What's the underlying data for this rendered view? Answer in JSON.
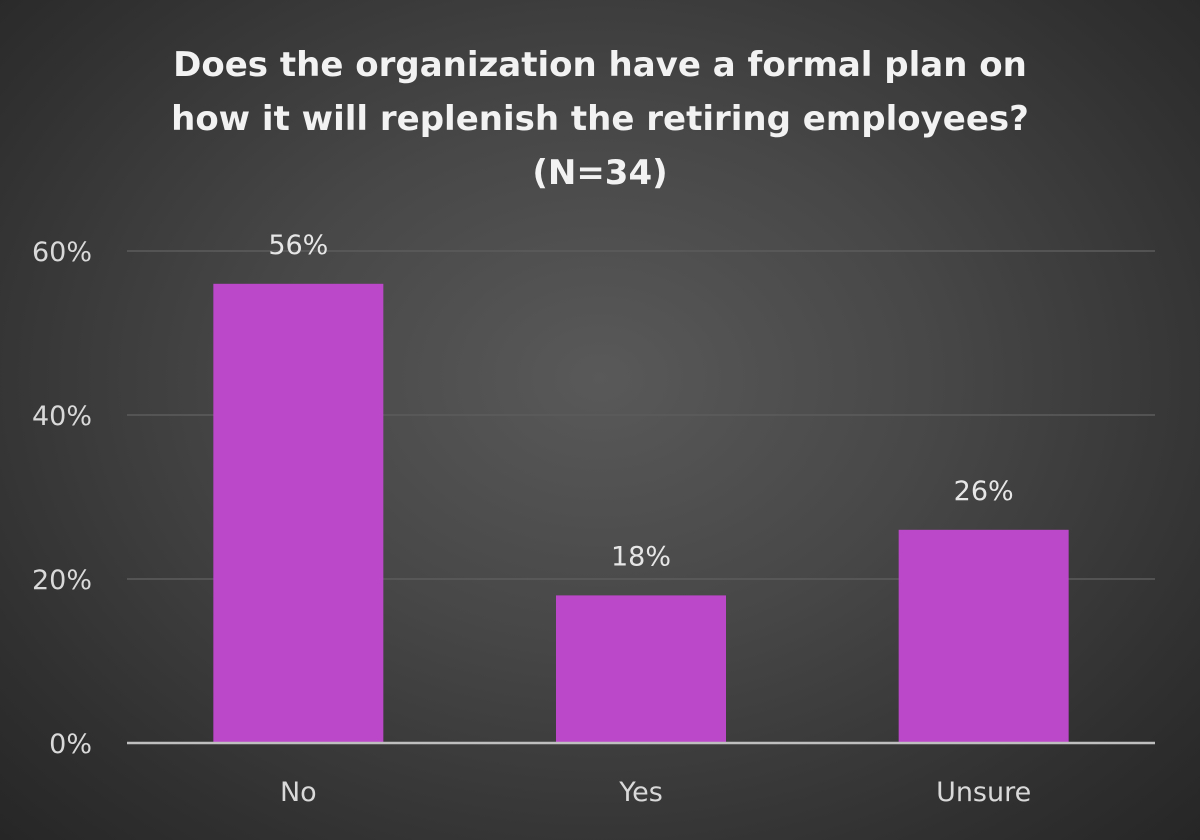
{
  "chart_data": {
    "type": "bar",
    "title_lines": [
      "Does the organization have a formal plan on",
      "how it will replenish the retiring employees?",
      "(N=34)"
    ],
    "categories": [
      "No",
      "Yes",
      "Unsure"
    ],
    "values": [
      56,
      18,
      26
    ],
    "data_labels": [
      "56%",
      "18%",
      "26%"
    ],
    "y_ticks": [
      0,
      20,
      40,
      60
    ],
    "y_tick_labels": [
      "0%",
      "20%",
      "40%",
      "60%"
    ],
    "ylim": [
      0,
      60
    ],
    "xlabel": "",
    "ylabel": "",
    "grid": true,
    "legend": "none",
    "bar_color": "#bb47c9",
    "gridline_color": "#5c5c5c",
    "axis_color": "#bfbfbf",
    "background_color": "#404040"
  }
}
